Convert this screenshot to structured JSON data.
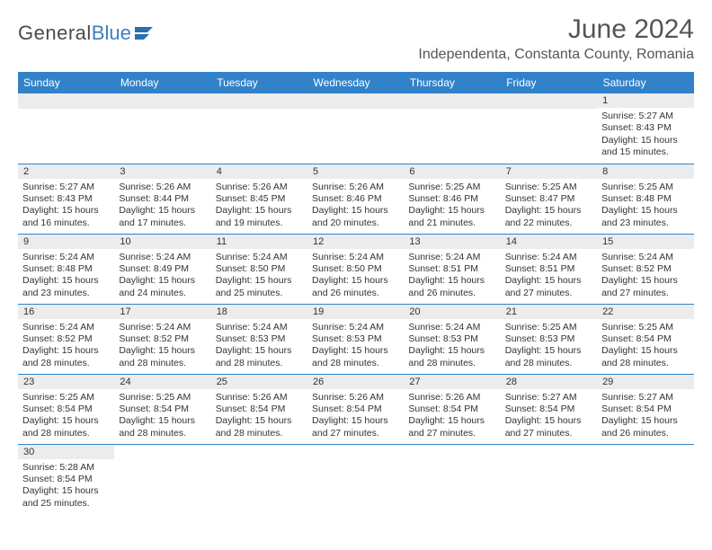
{
  "logo": {
    "text_gray": "General",
    "text_blue": "Blue"
  },
  "title": "June 2024",
  "location": "Independenta, Constanta County, Romania",
  "colors": {
    "header_bg": "#3282c9",
    "header_text": "#ffffff",
    "daynum_bg": "#ececec",
    "border": "#3282c9",
    "body_text": "#333333",
    "title_text": "#555555",
    "logo_blue": "#3b7fc4"
  },
  "weekdays": [
    "Sunday",
    "Monday",
    "Tuesday",
    "Wednesday",
    "Thursday",
    "Friday",
    "Saturday"
  ],
  "weeks": [
    [
      null,
      null,
      null,
      null,
      null,
      null,
      {
        "n": "1",
        "sr": "5:27 AM",
        "ss": "8:43 PM",
        "dl": "15 hours and 15 minutes."
      }
    ],
    [
      {
        "n": "2",
        "sr": "5:27 AM",
        "ss": "8:43 PM",
        "dl": "15 hours and 16 minutes."
      },
      {
        "n": "3",
        "sr": "5:26 AM",
        "ss": "8:44 PM",
        "dl": "15 hours and 17 minutes."
      },
      {
        "n": "4",
        "sr": "5:26 AM",
        "ss": "8:45 PM",
        "dl": "15 hours and 19 minutes."
      },
      {
        "n": "5",
        "sr": "5:26 AM",
        "ss": "8:46 PM",
        "dl": "15 hours and 20 minutes."
      },
      {
        "n": "6",
        "sr": "5:25 AM",
        "ss": "8:46 PM",
        "dl": "15 hours and 21 minutes."
      },
      {
        "n": "7",
        "sr": "5:25 AM",
        "ss": "8:47 PM",
        "dl": "15 hours and 22 minutes."
      },
      {
        "n": "8",
        "sr": "5:25 AM",
        "ss": "8:48 PM",
        "dl": "15 hours and 23 minutes."
      }
    ],
    [
      {
        "n": "9",
        "sr": "5:24 AM",
        "ss": "8:48 PM",
        "dl": "15 hours and 23 minutes."
      },
      {
        "n": "10",
        "sr": "5:24 AM",
        "ss": "8:49 PM",
        "dl": "15 hours and 24 minutes."
      },
      {
        "n": "11",
        "sr": "5:24 AM",
        "ss": "8:50 PM",
        "dl": "15 hours and 25 minutes."
      },
      {
        "n": "12",
        "sr": "5:24 AM",
        "ss": "8:50 PM",
        "dl": "15 hours and 26 minutes."
      },
      {
        "n": "13",
        "sr": "5:24 AM",
        "ss": "8:51 PM",
        "dl": "15 hours and 26 minutes."
      },
      {
        "n": "14",
        "sr": "5:24 AM",
        "ss": "8:51 PM",
        "dl": "15 hours and 27 minutes."
      },
      {
        "n": "15",
        "sr": "5:24 AM",
        "ss": "8:52 PM",
        "dl": "15 hours and 27 minutes."
      }
    ],
    [
      {
        "n": "16",
        "sr": "5:24 AM",
        "ss": "8:52 PM",
        "dl": "15 hours and 28 minutes."
      },
      {
        "n": "17",
        "sr": "5:24 AM",
        "ss": "8:52 PM",
        "dl": "15 hours and 28 minutes."
      },
      {
        "n": "18",
        "sr": "5:24 AM",
        "ss": "8:53 PM",
        "dl": "15 hours and 28 minutes."
      },
      {
        "n": "19",
        "sr": "5:24 AM",
        "ss": "8:53 PM",
        "dl": "15 hours and 28 minutes."
      },
      {
        "n": "20",
        "sr": "5:24 AM",
        "ss": "8:53 PM",
        "dl": "15 hours and 28 minutes."
      },
      {
        "n": "21",
        "sr": "5:25 AM",
        "ss": "8:53 PM",
        "dl": "15 hours and 28 minutes."
      },
      {
        "n": "22",
        "sr": "5:25 AM",
        "ss": "8:54 PM",
        "dl": "15 hours and 28 minutes."
      }
    ],
    [
      {
        "n": "23",
        "sr": "5:25 AM",
        "ss": "8:54 PM",
        "dl": "15 hours and 28 minutes."
      },
      {
        "n": "24",
        "sr": "5:25 AM",
        "ss": "8:54 PM",
        "dl": "15 hours and 28 minutes."
      },
      {
        "n": "25",
        "sr": "5:26 AM",
        "ss": "8:54 PM",
        "dl": "15 hours and 28 minutes."
      },
      {
        "n": "26",
        "sr": "5:26 AM",
        "ss": "8:54 PM",
        "dl": "15 hours and 27 minutes."
      },
      {
        "n": "27",
        "sr": "5:26 AM",
        "ss": "8:54 PM",
        "dl": "15 hours and 27 minutes."
      },
      {
        "n": "28",
        "sr": "5:27 AM",
        "ss": "8:54 PM",
        "dl": "15 hours and 27 minutes."
      },
      {
        "n": "29",
        "sr": "5:27 AM",
        "ss": "8:54 PM",
        "dl": "15 hours and 26 minutes."
      }
    ],
    [
      {
        "n": "30",
        "sr": "5:28 AM",
        "ss": "8:54 PM",
        "dl": "15 hours and 25 minutes."
      },
      null,
      null,
      null,
      null,
      null,
      null
    ]
  ],
  "labels": {
    "sunrise": "Sunrise:",
    "sunset": "Sunset:",
    "daylight": "Daylight:"
  }
}
